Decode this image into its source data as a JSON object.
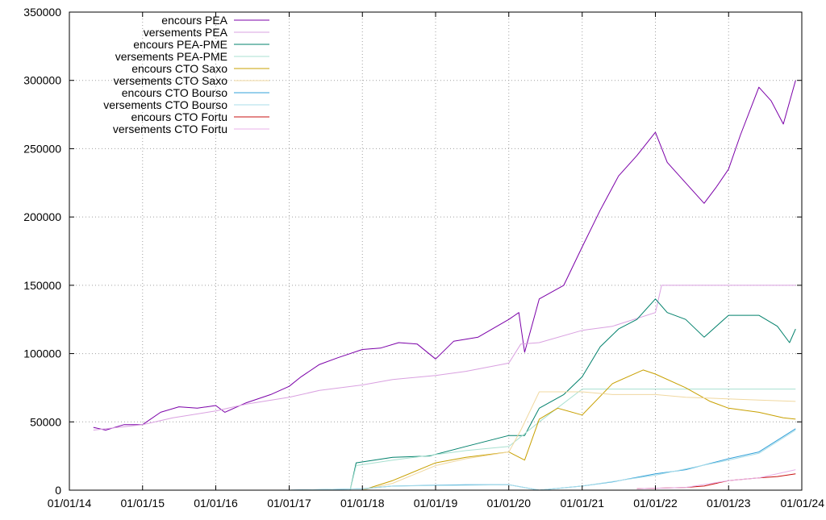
{
  "chart_data": {
    "type": "line",
    "grid": true,
    "legend_position": "top-left",
    "xlabel": "",
    "ylabel": "",
    "x_ticks": [
      "01/01/14",
      "01/01/15",
      "01/01/16",
      "01/01/17",
      "01/01/18",
      "01/01/19",
      "01/01/20",
      "01/01/21",
      "01/01/22",
      "01/01/23",
      "01/01/24"
    ],
    "y_ticks": [
      0,
      50000,
      100000,
      150000,
      200000,
      250000,
      300000,
      350000
    ],
    "xlim": [
      "2014-01-01",
      "2024-01-01"
    ],
    "ylim": [
      0,
      350000
    ],
    "series": [
      {
        "name": "encours PEA",
        "color": "#7b00a8",
        "points": [
          [
            "2014-05-01",
            46000
          ],
          [
            "2014-07-01",
            44000
          ],
          [
            "2014-10-01",
            48000
          ],
          [
            "2015-01-01",
            48000
          ],
          [
            "2015-04-01",
            57000
          ],
          [
            "2015-07-01",
            61000
          ],
          [
            "2015-10-01",
            60000
          ],
          [
            "2016-01-01",
            62000
          ],
          [
            "2016-02-15",
            57000
          ],
          [
            "2016-06-01",
            64000
          ],
          [
            "2016-10-01",
            70000
          ],
          [
            "2017-01-01",
            76000
          ],
          [
            "2017-03-01",
            83000
          ],
          [
            "2017-06-01",
            92000
          ],
          [
            "2017-09-01",
            97000
          ],
          [
            "2018-01-01",
            103000
          ],
          [
            "2018-04-01",
            104000
          ],
          [
            "2018-07-01",
            108000
          ],
          [
            "2018-10-01",
            107000
          ],
          [
            "2019-01-01",
            96000
          ],
          [
            "2019-04-01",
            109000
          ],
          [
            "2019-08-01",
            112000
          ],
          [
            "2020-01-01",
            125000
          ],
          [
            "2020-02-20",
            130000
          ],
          [
            "2020-03-20",
            101000
          ],
          [
            "2020-06-01",
            140000
          ],
          [
            "2020-10-01",
            150000
          ],
          [
            "2021-01-01",
            178000
          ],
          [
            "2021-04-01",
            205000
          ],
          [
            "2021-07-01",
            230000
          ],
          [
            "2021-10-01",
            245000
          ],
          [
            "2022-01-01",
            262000
          ],
          [
            "2022-03-01",
            240000
          ],
          [
            "2022-06-01",
            225000
          ],
          [
            "2022-09-01",
            210000
          ],
          [
            "2022-11-01",
            222000
          ],
          [
            "2023-01-01",
            235000
          ],
          [
            "2023-03-01",
            260000
          ],
          [
            "2023-06-01",
            295000
          ],
          [
            "2023-08-01",
            285000
          ],
          [
            "2023-10-01",
            268000
          ],
          [
            "2023-12-01",
            300000
          ]
        ]
      },
      {
        "name": "versements PEA",
        "color": "#d9a0e0",
        "points": [
          [
            "2014-05-01",
            44000
          ],
          [
            "2014-09-01",
            46000
          ],
          [
            "2015-01-01",
            48000
          ],
          [
            "2015-06-01",
            53000
          ],
          [
            "2016-01-01",
            58000
          ],
          [
            "2016-06-01",
            63000
          ],
          [
            "2017-01-01",
            68000
          ],
          [
            "2017-06-01",
            73000
          ],
          [
            "2018-01-01",
            77000
          ],
          [
            "2018-06-01",
            81000
          ],
          [
            "2019-01-01",
            84000
          ],
          [
            "2019-06-01",
            87000
          ],
          [
            "2020-01-01",
            93000
          ],
          [
            "2020-03-01",
            107000
          ],
          [
            "2020-06-01",
            108000
          ],
          [
            "2021-01-01",
            117000
          ],
          [
            "2021-06-01",
            120000
          ],
          [
            "2022-01-01",
            130000
          ],
          [
            "2022-02-01",
            150000
          ],
          [
            "2023-12-01",
            150000
          ]
        ]
      },
      {
        "name": "encours PEA-PME",
        "color": "#00806b",
        "points": [
          [
            "2017-11-01",
            0
          ],
          [
            "2017-12-01",
            20000
          ],
          [
            "2018-06-01",
            24000
          ],
          [
            "2018-12-01",
            25000
          ],
          [
            "2019-06-01",
            32000
          ],
          [
            "2020-01-01",
            40000
          ],
          [
            "2020-03-20",
            40000
          ],
          [
            "2020-06-01",
            60000
          ],
          [
            "2020-10-01",
            70000
          ],
          [
            "2021-01-01",
            83000
          ],
          [
            "2021-04-01",
            105000
          ],
          [
            "2021-07-01",
            118000
          ],
          [
            "2021-10-01",
            125000
          ],
          [
            "2022-01-01",
            140000
          ],
          [
            "2022-03-01",
            130000
          ],
          [
            "2022-06-01",
            125000
          ],
          [
            "2022-09-01",
            112000
          ],
          [
            "2023-01-01",
            128000
          ],
          [
            "2023-06-01",
            128000
          ],
          [
            "2023-09-01",
            120000
          ],
          [
            "2023-11-01",
            108000
          ],
          [
            "2023-12-01",
            118000
          ]
        ]
      },
      {
        "name": "versements PEA-PME",
        "color": "#a8e0d0",
        "points": [
          [
            "2017-11-01",
            0
          ],
          [
            "2017-12-01",
            18000
          ],
          [
            "2018-06-01",
            22000
          ],
          [
            "2019-01-01",
            26000
          ],
          [
            "2019-06-01",
            29000
          ],
          [
            "2020-01-01",
            32000
          ],
          [
            "2020-06-01",
            50000
          ],
          [
            "2021-01-01",
            74000
          ],
          [
            "2023-12-01",
            74000
          ]
        ]
      },
      {
        "name": "encours CTO Saxo",
        "color": "#c8a000",
        "points": [
          [
            "2018-01-01",
            0
          ],
          [
            "2018-06-01",
            7000
          ],
          [
            "2019-01-01",
            20000
          ],
          [
            "2019-06-01",
            24000
          ],
          [
            "2020-01-01",
            28000
          ],
          [
            "2020-03-20",
            22000
          ],
          [
            "2020-06-01",
            52000
          ],
          [
            "2020-09-01",
            60000
          ],
          [
            "2021-01-01",
            55000
          ],
          [
            "2021-06-01",
            78000
          ],
          [
            "2021-11-01",
            88000
          ],
          [
            "2022-01-01",
            85000
          ],
          [
            "2022-06-01",
            75000
          ],
          [
            "2022-10-01",
            65000
          ],
          [
            "2023-01-01",
            60000
          ],
          [
            "2023-06-01",
            57000
          ],
          [
            "2023-10-01",
            53000
          ],
          [
            "2023-12-01",
            52000
          ]
        ]
      },
      {
        "name": "versements CTO Saxo",
        "color": "#f0d8a0",
        "points": [
          [
            "2018-01-01",
            0
          ],
          [
            "2018-06-01",
            5000
          ],
          [
            "2019-01-01",
            18000
          ],
          [
            "2019-06-01",
            23000
          ],
          [
            "2020-01-01",
            28000
          ],
          [
            "2020-03-01",
            44000
          ],
          [
            "2020-06-01",
            72000
          ],
          [
            "2021-01-01",
            72000
          ],
          [
            "2021-06-01",
            70000
          ],
          [
            "2022-01-01",
            70000
          ],
          [
            "2022-06-01",
            68000
          ],
          [
            "2023-06-01",
            66000
          ],
          [
            "2023-12-01",
            65000
          ]
        ]
      },
      {
        "name": "encours CTO Bourso",
        "color": "#30a0d8",
        "points": [
          [
            "2016-01-01",
            0
          ],
          [
            "2017-01-01",
            0
          ],
          [
            "2018-01-01",
            1000
          ],
          [
            "2018-06-01",
            3000
          ],
          [
            "2019-06-01",
            4000
          ],
          [
            "2020-01-01",
            4000
          ],
          [
            "2020-06-01",
            0
          ],
          [
            "2021-01-01",
            3000
          ],
          [
            "2021-06-01",
            6000
          ],
          [
            "2022-01-01",
            12000
          ],
          [
            "2022-06-01",
            15000
          ],
          [
            "2023-01-01",
            23000
          ],
          [
            "2023-06-01",
            28000
          ],
          [
            "2023-12-01",
            45000
          ]
        ]
      },
      {
        "name": "versements CTO Bourso",
        "color": "#a8dce8",
        "points": [
          [
            "2016-01-01",
            0
          ],
          [
            "2017-01-01",
            0
          ],
          [
            "2018-01-01",
            1000
          ],
          [
            "2018-06-01",
            3000
          ],
          [
            "2020-01-01",
            4000
          ],
          [
            "2020-06-01",
            0
          ],
          [
            "2021-01-01",
            3000
          ],
          [
            "2022-01-01",
            11000
          ],
          [
            "2023-01-01",
            22000
          ],
          [
            "2023-06-01",
            27000
          ],
          [
            "2023-12-01",
            44000
          ]
        ]
      },
      {
        "name": "encours CTO Fortu",
        "color": "#c81010",
        "points": [
          [
            "2021-10-01",
            1000
          ],
          [
            "2022-06-01",
            2000
          ],
          [
            "2022-09-01",
            3000
          ],
          [
            "2023-01-01",
            7000
          ],
          [
            "2023-06-01",
            9000
          ],
          [
            "2023-09-01",
            10000
          ],
          [
            "2023-12-01",
            12000
          ]
        ]
      },
      {
        "name": "versements CTO Fortu",
        "color": "#e8b0e8",
        "points": [
          [
            "2021-10-01",
            1000
          ],
          [
            "2022-06-01",
            2000
          ],
          [
            "2023-01-01",
            7000
          ],
          [
            "2023-06-01",
            9000
          ],
          [
            "2023-12-01",
            15000
          ]
        ]
      }
    ]
  }
}
